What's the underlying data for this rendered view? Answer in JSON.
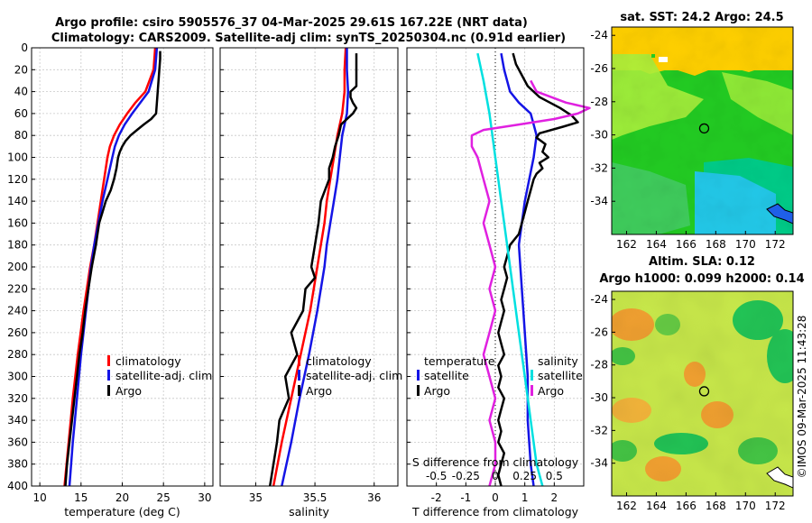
{
  "titles": {
    "main_line1": "Argo profile: csiro 5905576_37 04-Mar-2025 29.61S 167.22E (NRT data)",
    "main_line2": "Climatology: CARS2009. Satellite-adj clim: synTS_20250304.nc (0.91d earlier)",
    "map_top": "sat. SST: 24.2 Argo: 24.5",
    "map_bottom_line1": "Altim. SLA: 0.12",
    "map_bottom_line2": "Argo h1000: 0.099 h2000: 0.14"
  },
  "credit": "©IMOS 09-Mar-2025 11:43:28",
  "colors": {
    "climatology": "#ff0000",
    "satellite": "#1414e6",
    "argo": "#000000",
    "sat_salinity": "#00e0e0",
    "clim_salinity": "#e020e0"
  },
  "chart_data": [
    {
      "id": "temperature",
      "type": "line",
      "xlabel": "temperature (deg C)",
      "ylabel": "",
      "xlim": [
        9,
        31
      ],
      "ylim": [
        400,
        0
      ],
      "xticks": [
        10,
        15,
        20,
        25,
        30
      ],
      "yticks": [
        0,
        20,
        40,
        60,
        80,
        100,
        120,
        140,
        160,
        180,
        200,
        220,
        240,
        260,
        280,
        300,
        320,
        340,
        360,
        380,
        400
      ],
      "grid": true,
      "legend": {
        "placement": "bottom-right",
        "entries": [
          "climatology",
          "satellite-adj. clim",
          "Argo"
        ]
      },
      "series": [
        {
          "name": "climatology",
          "color": "#ff0000",
          "depth": [
            0,
            20,
            40,
            50,
            60,
            70,
            80,
            90,
            100,
            120,
            140,
            160,
            180,
            200,
            240,
            280,
            320,
            360,
            400
          ],
          "values": [
            24.0,
            23.8,
            22.8,
            21.6,
            20.6,
            19.7,
            19.0,
            18.5,
            18.2,
            17.8,
            17.4,
            17.0,
            16.6,
            16.1,
            15.3,
            14.6,
            14.0,
            13.5,
            13.0
          ]
        },
        {
          "name": "satellite-adj. clim",
          "color": "#1414e6",
          "depth": [
            0,
            20,
            40,
            50,
            60,
            70,
            80,
            90,
            100,
            120,
            140,
            160,
            180,
            200,
            240,
            280,
            320,
            360,
            400
          ],
          "values": [
            24.2,
            24.0,
            23.2,
            22.2,
            21.2,
            20.3,
            19.6,
            19.1,
            18.8,
            18.2,
            17.6,
            17.1,
            16.6,
            16.2,
            15.6,
            15.0,
            14.5,
            14.0,
            13.6
          ]
        },
        {
          "name": "Argo",
          "color": "#000000",
          "depth": [
            3,
            10,
            20,
            30,
            40,
            50,
            60,
            65,
            70,
            75,
            80,
            85,
            90,
            95,
            100,
            110,
            120,
            130,
            140,
            150,
            160,
            170,
            180,
            200,
            220,
            240,
            260,
            280,
            300,
            320,
            340,
            360,
            380,
            400
          ],
          "values": [
            24.6,
            24.6,
            24.5,
            24.4,
            24.3,
            24.2,
            24.1,
            23.5,
            22.6,
            21.8,
            21.0,
            20.4,
            20.0,
            19.7,
            19.5,
            19.3,
            19.0,
            18.6,
            18.0,
            17.6,
            17.2,
            17.0,
            16.8,
            16.3,
            15.9,
            15.5,
            15.2,
            14.8,
            14.5,
            14.2,
            13.9,
            13.6,
            13.3,
            13.1
          ]
        }
      ]
    },
    {
      "id": "salinity",
      "type": "line",
      "xlabel": "salinity",
      "ylabel": "",
      "xlim": [
        34.7,
        36.2
      ],
      "ylim": [
        400,
        0
      ],
      "xticks": [
        35,
        35.5,
        36
      ],
      "grid": true,
      "legend": {
        "placement": "bottom-right",
        "entries": [
          "climatology",
          "satellite-adj. clim",
          "Argo"
        ]
      },
      "series": [
        {
          "name": "climatology",
          "color": "#ff0000",
          "depth": [
            0,
            20,
            40,
            60,
            70,
            80,
            100,
            120,
            140,
            160,
            180,
            200,
            240,
            280,
            320,
            360,
            400
          ],
          "values": [
            35.76,
            35.75,
            35.75,
            35.73,
            35.71,
            35.69,
            35.66,
            35.63,
            35.6,
            35.58,
            35.55,
            35.52,
            35.46,
            35.38,
            35.3,
            35.22,
            35.15
          ]
        },
        {
          "name": "satellite-adj. clim",
          "color": "#1414e6",
          "depth": [
            0,
            20,
            40,
            60,
            70,
            80,
            100,
            120,
            140,
            160,
            180,
            200,
            240,
            280,
            320,
            360,
            400
          ],
          "values": [
            35.77,
            35.77,
            35.78,
            35.77,
            35.75,
            35.73,
            35.71,
            35.69,
            35.66,
            35.63,
            35.6,
            35.58,
            35.52,
            35.45,
            35.37,
            35.3,
            35.22
          ]
        },
        {
          "name": "Argo",
          "color": "#000000",
          "depth": [
            5,
            20,
            35,
            40,
            45,
            50,
            55,
            60,
            70,
            80,
            90,
            100,
            110,
            120,
            140,
            160,
            180,
            200,
            210,
            220,
            240,
            260,
            280,
            300,
            320,
            340,
            360,
            380,
            400
          ],
          "values": [
            35.85,
            35.85,
            35.85,
            35.8,
            35.8,
            35.82,
            35.85,
            35.82,
            35.72,
            35.7,
            35.67,
            35.65,
            35.62,
            35.62,
            35.55,
            35.53,
            35.5,
            35.47,
            35.5,
            35.42,
            35.4,
            35.3,
            35.35,
            35.25,
            35.28,
            35.2,
            35.18,
            35.15,
            35.12
          ]
        }
      ]
    },
    {
      "id": "differences",
      "type": "line",
      "xlabel": "T difference from climatology",
      "xlabel_top": "S difference from climatology",
      "ylabel": "",
      "xlim": [
        -3,
        3
      ],
      "ylim": [
        400,
        0
      ],
      "xticks": [
        -2,
        -1,
        0,
        1,
        2
      ],
      "xticks_top": [
        "-0.5",
        "-0.25",
        "0",
        "0.25",
        "0.5"
      ],
      "grid": true,
      "legend": {
        "placement": "bottom",
        "temperature_title": "temperature",
        "salinity_title": "salinity",
        "temperature_entries": [
          "satellite",
          "Argo"
        ],
        "salinity_entries": [
          "satellite",
          "Argo"
        ]
      },
      "series": [
        {
          "name": "T satellite",
          "color": "#1414e6",
          "depth": [
            5,
            20,
            40,
            50,
            60,
            70,
            80,
            100,
            140,
            180,
            220,
            260,
            300,
            340,
            380,
            400
          ],
          "values": [
            0.2,
            0.3,
            0.5,
            0.8,
            1.2,
            1.3,
            1.4,
            1.3,
            1.0,
            0.8,
            0.9,
            1.0,
            1.1,
            1.1,
            1.2,
            1.3
          ]
        },
        {
          "name": "T Argo",
          "color": "#000000",
          "depth": [
            5,
            15,
            25,
            35,
            45,
            55,
            62,
            68,
            72,
            78,
            82,
            88,
            95,
            100,
            105,
            110,
            115,
            120,
            130,
            140,
            150,
            160,
            170,
            180,
            190,
            200,
            210,
            220,
            230,
            240,
            250,
            260,
            270,
            280,
            290,
            300,
            310,
            320,
            330,
            340,
            350,
            360,
            370,
            380,
            390,
            400
          ],
          "values": [
            0.6,
            0.7,
            0.9,
            1.1,
            1.5,
            2.2,
            2.6,
            2.8,
            2.3,
            1.5,
            1.4,
            1.7,
            1.6,
            1.8,
            1.5,
            1.6,
            1.4,
            1.3,
            1.2,
            1.1,
            1.0,
            0.9,
            0.8,
            0.5,
            0.4,
            0.3,
            0.4,
            0.3,
            0.2,
            0.3,
            0.2,
            0.1,
            0.2,
            0.3,
            0.1,
            0.2,
            0.1,
            0.3,
            0.2,
            0.1,
            0.2,
            0.1,
            0.3,
            0.2,
            0.1,
            0.2
          ]
        },
        {
          "name": "S satellite",
          "color": "#00e0e0",
          "depth": [
            5,
            30,
            60,
            100,
            140,
            180,
            220,
            260,
            300,
            340,
            380,
            400
          ],
          "values": [
            -0.15,
            -0.1,
            -0.05,
            0.0,
            0.05,
            0.1,
            0.15,
            0.2,
            0.25,
            0.3,
            0.35,
            0.4
          ]
        },
        {
          "name": "S Argo",
          "color": "#e020e0",
          "depth": [
            30,
            40,
            50,
            55,
            60,
            65,
            70,
            75,
            80,
            90,
            100,
            120,
            140,
            160,
            180,
            200,
            220,
            240,
            260,
            280,
            300,
            320,
            340,
            360,
            380,
            400
          ],
          "values": [
            0.3,
            0.35,
            0.6,
            0.8,
            0.7,
            0.5,
            0.2,
            -0.1,
            -0.2,
            -0.2,
            -0.15,
            -0.1,
            -0.05,
            -0.1,
            -0.05,
            0.0,
            -0.05,
            0.0,
            -0.05,
            -0.1,
            -0.05,
            0.0,
            -0.05,
            0.0,
            0.0,
            -0.05
          ]
        }
      ]
    },
    {
      "id": "sst_map",
      "type": "heatmap",
      "title": "sat. SST: 24.2 Argo: 24.5",
      "xlim": [
        161,
        173.2
      ],
      "ylim": [
        -36,
        -23.5
      ],
      "xticks": [
        162,
        164,
        166,
        168,
        170,
        172
      ],
      "yticks": [
        -24,
        -26,
        -28,
        -30,
        -32,
        -34
      ],
      "marker": {
        "lon": 167.22,
        "lat": -29.61
      }
    },
    {
      "id": "sla_map",
      "type": "heatmap",
      "title": "Altim. SLA: 0.12",
      "subtitle": "Argo h1000: 0.099 h2000: 0.14",
      "xlim": [
        161,
        173.2
      ],
      "ylim": [
        -36,
        -23.5
      ],
      "xticks": [
        162,
        164,
        166,
        168,
        170,
        172
      ],
      "yticks": [
        -24,
        -26,
        -28,
        -30,
        -32,
        -34
      ],
      "marker": {
        "lon": 167.22,
        "lat": -29.61
      }
    }
  ]
}
